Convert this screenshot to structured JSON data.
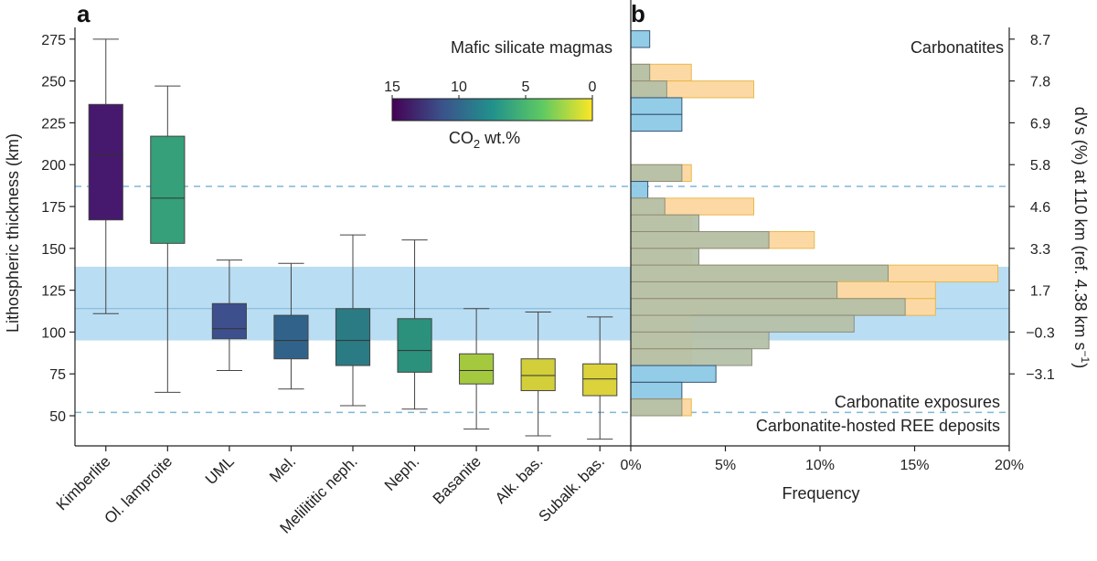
{
  "chart_data": [
    {
      "panel": "a",
      "type": "box",
      "title": "Mafic silicate magmas",
      "ylabel": "Lithospheric thickness (km)",
      "ylim": [
        32,
        282
      ],
      "yticks": [
        50,
        75,
        100,
        125,
        150,
        175,
        200,
        225,
        250,
        275
      ],
      "shaded_band": [
        95,
        139
      ],
      "band_line": 114,
      "dashed_lines": [
        52,
        187
      ],
      "colorbar": {
        "label": "CO2 wt.%",
        "label_main": "CO",
        "label_sub": "2",
        "label_rest": " wt.%",
        "ticks": [
          15,
          10,
          5,
          0
        ],
        "colors": [
          "#440154",
          "#3b528b",
          "#21918c",
          "#5ec962",
          "#fde725"
        ]
      },
      "categories": [
        "Kimberlite",
        "Ol. lamproite",
        "UML",
        "Mel.",
        "Melilititic neph.",
        "Neph.",
        "Basanite",
        "Alk. bas.",
        "Subalk. bas."
      ],
      "boxes": [
        {
          "min": 111,
          "q1": 167,
          "median": 206,
          "q3": 236,
          "max": 275,
          "color": "#46196e"
        },
        {
          "min": 64,
          "q1": 153,
          "median": 180,
          "q3": 217,
          "max": 247,
          "color": "#35a079"
        },
        {
          "min": 77,
          "q1": 96,
          "median": 102,
          "q3": 117,
          "max": 143,
          "color": "#3d4f8c"
        },
        {
          "min": 66,
          "q1": 84,
          "median": 95,
          "q3": 110,
          "max": 141,
          "color": "#31638a"
        },
        {
          "min": 56,
          "q1": 80,
          "median": 95,
          "q3": 114,
          "max": 158,
          "color": "#2b7b84"
        },
        {
          "min": 54,
          "q1": 76,
          "median": 89,
          "q3": 108,
          "max": 155,
          "color": "#2b917d"
        },
        {
          "min": 42,
          "q1": 69,
          "median": 77,
          "q3": 87,
          "max": 114,
          "color": "#a4c93f"
        },
        {
          "min": 38,
          "q1": 65,
          "median": 74,
          "q3": 84,
          "max": 112,
          "color": "#d2cf3a"
        },
        {
          "min": 36,
          "q1": 62,
          "median": 72,
          "q3": 81,
          "max": 109,
          "color": "#dcd23c"
        }
      ]
    },
    {
      "panel": "b",
      "type": "bar",
      "orientation": "horizontal",
      "title": "Carbonatites",
      "xlabel": "Frequency",
      "xlim": [
        0,
        20
      ],
      "xticks": [
        "0%",
        "5%",
        "10%",
        "15%",
        "20%"
      ],
      "y2label": "dVs (%) at 110 km (ref. 4.38 km s−1)",
      "y2label_main": "dVs (%) at 110 km (ref. 4.38 km s",
      "y2label_sup": "−1",
      "y2label_end": ")",
      "y2ticks": [
        {
          "thickness": 275,
          "label": "8.7"
        },
        {
          "thickness": 250,
          "label": "7.8"
        },
        {
          "thickness": 225,
          "label": "6.9"
        },
        {
          "thickness": 200,
          "label": "5.8"
        },
        {
          "thickness": 175,
          "label": "4.6"
        },
        {
          "thickness": 150,
          "label": "3.3"
        },
        {
          "thickness": 125,
          "label": "1.7"
        },
        {
          "thickness": 100,
          "label": "−0.3"
        },
        {
          "thickness": 75,
          "label": "−3.1"
        }
      ],
      "bin_width": 10,
      "bins": [
        270,
        250,
        240,
        230,
        220,
        190,
        180,
        170,
        160,
        150,
        140,
        130,
        120,
        110,
        100,
        90,
        80,
        70,
        60,
        50
      ],
      "series": [
        {
          "name": "Carbonatite exposures",
          "color": "#8ecae6",
          "values": [
            1.0,
            1.0,
            1.9,
            2.7,
            2.7,
            2.7,
            0.9,
            1.8,
            3.6,
            7.3,
            3.6,
            13.6,
            10.9,
            14.5,
            11.8,
            7.3,
            6.4,
            4.5,
            2.7,
            2.7
          ]
        },
        {
          "name": "Carbonatite-hosted REE deposits",
          "color": "#fcd9a4",
          "values": [
            0,
            3.2,
            6.5,
            0,
            0,
            3.2,
            0,
            6.5,
            3.2,
            9.7,
            3.2,
            19.4,
            16.1,
            16.1,
            3.2,
            3.2,
            3.2,
            0,
            0,
            3.2
          ]
        }
      ],
      "legend": {
        "placement": "bottom-right",
        "entries": [
          {
            "label": "Carbonatite exposures",
            "color": "#4fbcd4"
          },
          {
            "label": "Carbonatite-hosted REE deposits",
            "color": "#e8bf3e"
          }
        ]
      }
    }
  ]
}
